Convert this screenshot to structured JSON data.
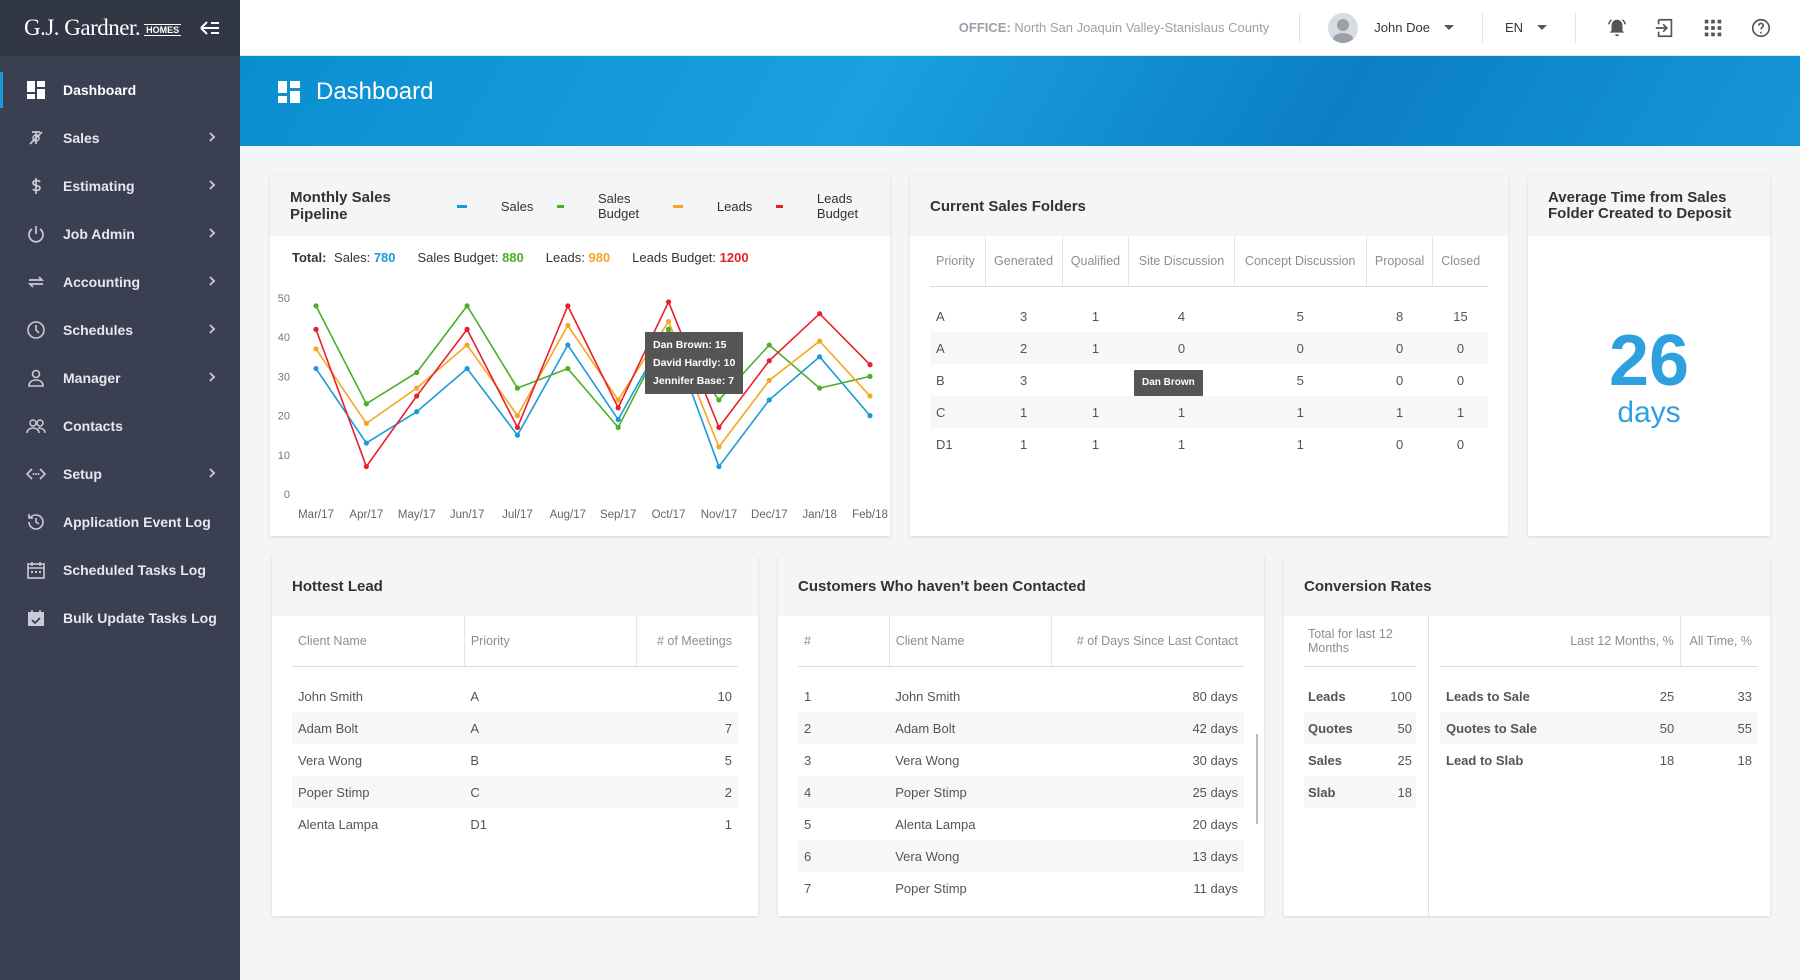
{
  "brand": {
    "name": "G.J. Gardner.",
    "sub": "HOMES"
  },
  "sidebar": {
    "items": [
      {
        "label": "Dashboard",
        "icon": "dashboard-icon",
        "active": true,
        "chevron": false
      },
      {
        "label": "Sales",
        "icon": "sales-icon",
        "chevron": true
      },
      {
        "label": "Estimating",
        "icon": "dollar-icon",
        "chevron": true
      },
      {
        "label": "Job Admin",
        "icon": "power-icon",
        "chevron": true
      },
      {
        "label": "Accounting",
        "icon": "repeat-icon",
        "chevron": true
      },
      {
        "label": "Schedules",
        "icon": "clock-icon",
        "chevron": true
      },
      {
        "label": "Manager",
        "icon": "person-icon",
        "chevron": true
      },
      {
        "label": "Contacts",
        "icon": "people-icon",
        "chevron": false
      },
      {
        "label": "Setup",
        "icon": "code-icon",
        "chevron": true
      },
      {
        "label": "Application Event Log",
        "icon": "history-icon",
        "chevron": false
      },
      {
        "label": "Scheduled Tasks Log",
        "icon": "calendar-icon",
        "chevron": false
      },
      {
        "label": "Bulk Update Tasks Log",
        "icon": "calendar-check-icon",
        "chevron": false
      }
    ]
  },
  "header": {
    "office_label": "OFFICE:",
    "office_value": "North San Joaquin Valley-Stanislaus County",
    "user": "John Doe",
    "lang": "EN"
  },
  "page": {
    "title": "Dashboard"
  },
  "pipeline": {
    "title": "Monthly Sales Pipeline",
    "totals_label": "Total:",
    "totals": [
      {
        "label": "Sales:",
        "value": "780",
        "color": "#1a9ad9"
      },
      {
        "label": "Sales Budget:",
        "value": "880",
        "color": "#4caf2a"
      },
      {
        "label": "Leads:",
        "value": "980",
        "color": "#f5a623"
      },
      {
        "label": "Leads Budget:",
        "value": "1200",
        "color": "#e8202a"
      }
    ],
    "tooltip": [
      "Dan Brown: 15",
      "David Hardly: 10",
      "Jennifer Base: 7"
    ]
  },
  "chart_data": {
    "type": "line",
    "title": "Monthly Sales Pipeline",
    "categories": [
      "Mar/17",
      "Apr/17",
      "May/17",
      "Jun/17",
      "Jul/17",
      "Aug/17",
      "Sep/17",
      "Oct/17",
      "Nov/17",
      "Dec/17",
      "Jan/18",
      "Feb/18"
    ],
    "yticks": [
      0,
      10,
      20,
      30,
      40,
      50
    ],
    "ylim": [
      0,
      50
    ],
    "grid": false,
    "legend": "top",
    "series": [
      {
        "name": "Sales",
        "color": "#1a9ad9",
        "values": [
          32,
          13,
          21,
          32,
          15,
          38,
          19,
          42,
          7,
          24,
          35,
          20
        ]
      },
      {
        "name": "Sales Budget",
        "color": "#4caf2a",
        "values": [
          48,
          23,
          31,
          48,
          27,
          32,
          17,
          42,
          24,
          38,
          27,
          30
        ]
      },
      {
        "name": "Leads",
        "color": "#f5a623",
        "values": [
          37,
          18,
          27,
          38,
          20,
          43,
          24,
          44,
          12,
          29,
          39,
          25
        ]
      },
      {
        "name": "Leads Budget",
        "color": "#e8202a",
        "values": [
          42,
          7,
          25,
          42,
          17,
          48,
          22,
          49,
          17,
          34,
          46,
          33
        ]
      }
    ]
  },
  "folders": {
    "title": "Current Sales Folders",
    "columns": [
      "Priority",
      "Generated",
      "Qualified",
      "Site Discussion",
      "Concept Discussion",
      "Proposal",
      "Closed"
    ],
    "rows": [
      [
        "A",
        "3",
        "1",
        "4",
        "5",
        "8",
        "15"
      ],
      [
        "A",
        "2",
        "1",
        "0",
        "0",
        "0",
        "0"
      ],
      [
        "B",
        "3",
        "",
        "0",
        "5",
        "0",
        "0"
      ],
      [
        "C",
        "1",
        "1",
        "1",
        "1",
        "1",
        "1"
      ],
      [
        "D1",
        "1",
        "1",
        "1",
        "1",
        "0",
        "0"
      ]
    ],
    "tooltip": "Dan Brown"
  },
  "avg_time": {
    "title": "Average Time from Sales Folder Created to Deposit",
    "value": "26",
    "unit": "days"
  },
  "hottest": {
    "title": "Hottest Lead",
    "columns": [
      "Client Name",
      "Priority",
      "# of Meetings"
    ],
    "rows": [
      [
        "John Smith",
        "A",
        "10"
      ],
      [
        "Adam  Bolt",
        "A",
        "7"
      ],
      [
        "Vera Wong",
        "B",
        "5"
      ],
      [
        "Poper Stimp",
        "C",
        "2"
      ],
      [
        "Alenta Lampa",
        "D1",
        "1"
      ]
    ]
  },
  "uncontacted": {
    "title": "Customers Who haven't been Contacted",
    "columns": [
      "#",
      "Client Name",
      "# of Days Since Last Contact"
    ],
    "rows": [
      [
        "1",
        "John Smith",
        "80 days"
      ],
      [
        "2",
        "Adam  Bolt",
        "42 days"
      ],
      [
        "3",
        "Vera Wong",
        "30 days"
      ],
      [
        "4",
        "Poper Stimp",
        "25 days"
      ],
      [
        "5",
        "Alenta Lampa",
        "20 days"
      ],
      [
        "6",
        "Vera Wong",
        "13 days"
      ],
      [
        "7",
        "Poper Stimp",
        "11 days"
      ]
    ]
  },
  "conversion": {
    "title": "Conversion Rates",
    "left_header": "Total for last 12 Months",
    "right_columns": [
      "Last 12 Months, %",
      "All Time, %"
    ],
    "left_rows": [
      [
        "Leads",
        "100"
      ],
      [
        "Quotes",
        "50"
      ],
      [
        "Sales",
        "25"
      ],
      [
        "Slab",
        "18"
      ]
    ],
    "right_rows": [
      [
        "Leads to Sale",
        "25",
        "33"
      ],
      [
        "Quotes to Sale",
        "50",
        "55"
      ],
      [
        "Lead to Slab",
        "18",
        "18"
      ]
    ]
  }
}
